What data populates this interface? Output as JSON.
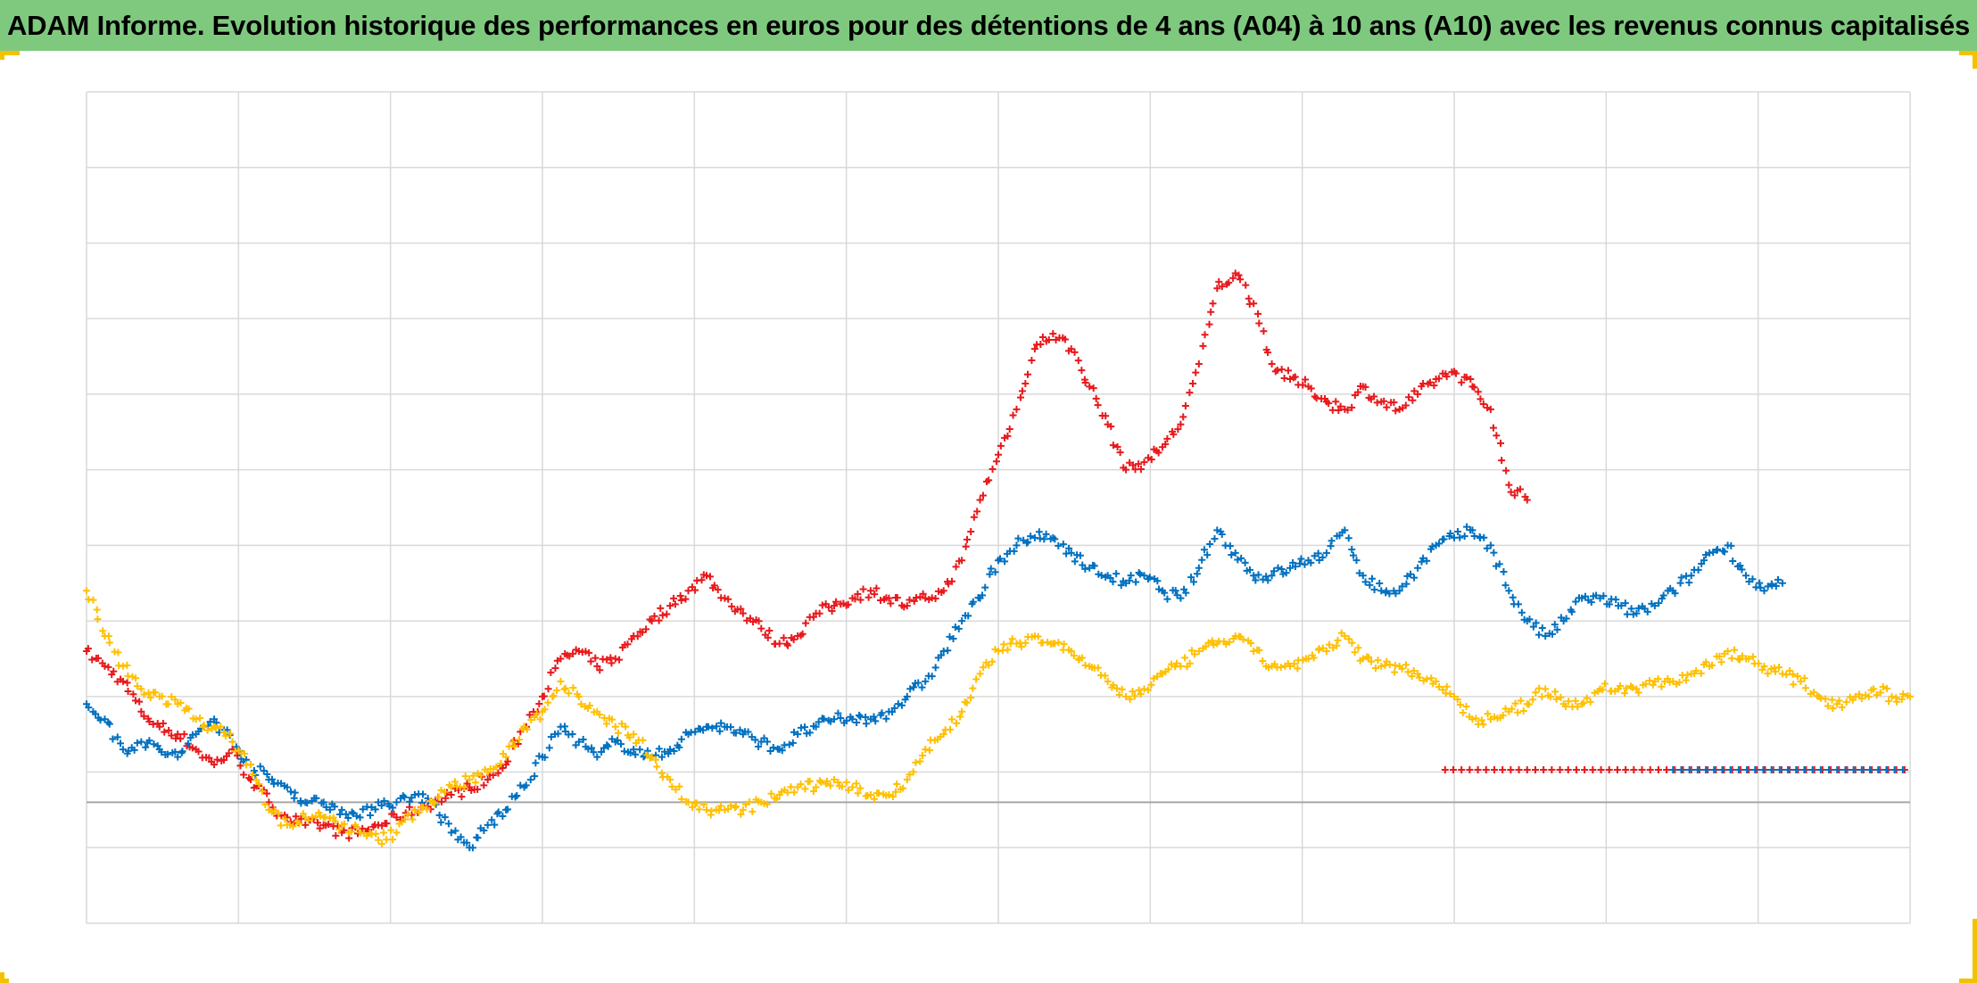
{
  "title": "ADAM Informe. Evolution historique des performances en euros pour des détentions de 4 ans (A04) à 10 ans (A10) avec les revenus connus capitalisés",
  "colors": {
    "title_bar": "#7fc97f",
    "frame_corners": "#f2c200",
    "grid": "#d9d9d9",
    "zero_line": "#a6a6a6"
  },
  "chart_data": {
    "type": "scatter",
    "marker": "plus",
    "grid": true,
    "legend": "none",
    "axis_labels_visible": false,
    "xlim": [
      0,
      100
    ],
    "ylim": [
      -16,
      94
    ],
    "y_major_step": 10,
    "y_zero_line": 0,
    "x_gridlines": 12,
    "series": [
      {
        "color": "#e8191c",
        "points": [
          [
            0,
            20
          ],
          [
            1,
            18
          ],
          [
            2,
            16
          ],
          [
            3,
            12
          ],
          [
            4,
            10
          ],
          [
            5,
            9
          ],
          [
            6,
            7
          ],
          [
            7,
            5
          ],
          [
            8,
            7
          ],
          [
            9,
            3
          ],
          [
            10,
            0
          ],
          [
            11,
            -2
          ],
          [
            12,
            -3
          ],
          [
            13,
            -3
          ],
          [
            14,
            -4
          ],
          [
            15,
            -4
          ],
          [
            16,
            -3
          ],
          [
            17,
            -2
          ],
          [
            18,
            -1
          ],
          [
            19,
            0
          ],
          [
            20,
            1
          ],
          [
            21,
            2
          ],
          [
            22,
            3
          ],
          [
            23,
            5
          ],
          [
            24,
            10
          ],
          [
            25,
            14
          ],
          [
            26,
            19
          ],
          [
            27,
            20
          ],
          [
            28,
            18
          ],
          [
            29,
            19
          ],
          [
            30,
            22
          ],
          [
            31,
            24
          ],
          [
            32,
            26
          ],
          [
            33,
            28
          ],
          [
            34,
            30
          ],
          [
            35,
            27
          ],
          [
            36,
            25
          ],
          [
            37,
            23
          ],
          [
            38,
            21
          ],
          [
            39,
            22
          ],
          [
            40,
            25
          ],
          [
            41,
            26
          ],
          [
            42,
            27
          ],
          [
            43,
            28
          ],
          [
            44,
            27
          ],
          [
            45,
            26
          ],
          [
            46,
            27
          ],
          [
            47,
            28
          ],
          [
            48,
            32
          ],
          [
            49,
            40
          ],
          [
            50,
            46
          ],
          [
            51,
            52
          ],
          [
            52,
            60
          ],
          [
            53,
            62
          ],
          [
            54,
            60
          ],
          [
            55,
            55
          ],
          [
            56,
            50
          ],
          [
            57,
            44
          ],
          [
            58,
            45
          ],
          [
            59,
            47
          ],
          [
            60,
            50
          ],
          [
            61,
            58
          ],
          [
            62,
            68
          ],
          [
            63,
            70
          ],
          [
            64,
            66
          ],
          [
            65,
            58
          ],
          [
            66,
            56
          ],
          [
            67,
            55
          ],
          [
            68,
            53
          ],
          [
            69,
            52
          ],
          [
            70,
            55
          ],
          [
            71,
            53
          ],
          [
            72,
            52
          ],
          [
            73,
            54
          ],
          [
            74,
            56
          ],
          [
            75,
            57
          ],
          [
            76,
            55
          ],
          [
            77,
            52
          ],
          [
            78,
            42
          ],
          [
            79,
            40
          ]
        ],
        "flat": {
          "from": 74.5,
          "to": 100,
          "value": 4.3
        }
      },
      {
        "color": "#0070c0",
        "points": [
          [
            0,
            13
          ],
          [
            1,
            11
          ],
          [
            2,
            7
          ],
          [
            3,
            8
          ],
          [
            4,
            7
          ],
          [
            5,
            6
          ],
          [
            6,
            9
          ],
          [
            7,
            11
          ],
          [
            8,
            8
          ],
          [
            9,
            5
          ],
          [
            10,
            3
          ],
          [
            11,
            2
          ],
          [
            12,
            0
          ],
          [
            13,
            0
          ],
          [
            14,
            -1
          ],
          [
            15,
            -2
          ],
          [
            16,
            0
          ],
          [
            17,
            0
          ],
          [
            18,
            1
          ],
          [
            19,
            0
          ],
          [
            20,
            -4
          ],
          [
            21,
            -6
          ],
          [
            22,
            -3
          ],
          [
            23,
            -1
          ],
          [
            24,
            2
          ],
          [
            25,
            6
          ],
          [
            26,
            10
          ],
          [
            27,
            8
          ],
          [
            28,
            6
          ],
          [
            29,
            8
          ],
          [
            30,
            7
          ],
          [
            31,
            6
          ],
          [
            32,
            7
          ],
          [
            33,
            9
          ],
          [
            34,
            10
          ],
          [
            35,
            10
          ],
          [
            36,
            9
          ],
          [
            37,
            8
          ],
          [
            38,
            7
          ],
          [
            39,
            9
          ],
          [
            40,
            10
          ],
          [
            41,
            11
          ],
          [
            42,
            11
          ],
          [
            43,
            11
          ],
          [
            44,
            12
          ],
          [
            45,
            14
          ],
          [
            46,
            16
          ],
          [
            47,
            20
          ],
          [
            48,
            24
          ],
          [
            49,
            27
          ],
          [
            50,
            32
          ],
          [
            51,
            34
          ],
          [
            52,
            35
          ],
          [
            53,
            35
          ],
          [
            54,
            33
          ],
          [
            55,
            31
          ],
          [
            56,
            30
          ],
          [
            57,
            29
          ],
          [
            58,
            30
          ],
          [
            59,
            28
          ],
          [
            60,
            27
          ],
          [
            61,
            31
          ],
          [
            62,
            36
          ],
          [
            63,
            33
          ],
          [
            64,
            30
          ],
          [
            65,
            30
          ],
          [
            66,
            31
          ],
          [
            67,
            32
          ],
          [
            68,
            33
          ],
          [
            69,
            36
          ],
          [
            70,
            30
          ],
          [
            71,
            28
          ],
          [
            72,
            28
          ],
          [
            73,
            31
          ],
          [
            74,
            34
          ],
          [
            75,
            35
          ],
          [
            76,
            36
          ],
          [
            77,
            34
          ],
          [
            78,
            28
          ],
          [
            79,
            24
          ],
          [
            80,
            22
          ],
          [
            81,
            24
          ],
          [
            82,
            27
          ],
          [
            83,
            27
          ],
          [
            84,
            26
          ],
          [
            85,
            25
          ],
          [
            86,
            26
          ],
          [
            87,
            28
          ],
          [
            88,
            30
          ],
          [
            89,
            33
          ],
          [
            90,
            34
          ],
          [
            91,
            30
          ],
          [
            92,
            28
          ],
          [
            93,
            29
          ]
        ],
        "flat": {
          "from": 87,
          "to": 100,
          "value": 4.3
        }
      },
      {
        "color": "#ffc000",
        "points": [
          [
            0,
            28
          ],
          [
            1,
            22
          ],
          [
            2,
            18
          ],
          [
            3,
            15
          ],
          [
            4,
            14
          ],
          [
            5,
            13
          ],
          [
            6,
            11
          ],
          [
            7,
            10
          ],
          [
            8,
            8
          ],
          [
            9,
            5
          ],
          [
            10,
            -1
          ],
          [
            11,
            -3
          ],
          [
            12,
            -2
          ],
          [
            13,
            -2
          ],
          [
            14,
            -3
          ],
          [
            15,
            -4
          ],
          [
            16,
            -5
          ],
          [
            17,
            -4
          ],
          [
            18,
            -1
          ],
          [
            19,
            0
          ],
          [
            20,
            2
          ],
          [
            21,
            3
          ],
          [
            22,
            4
          ],
          [
            23,
            6
          ],
          [
            24,
            10
          ],
          [
            25,
            12
          ],
          [
            26,
            16
          ],
          [
            27,
            14
          ],
          [
            28,
            12
          ],
          [
            29,
            10
          ],
          [
            30,
            9
          ],
          [
            31,
            6
          ],
          [
            32,
            3
          ],
          [
            33,
            0
          ],
          [
            34,
            -1
          ],
          [
            35,
            -1
          ],
          [
            36,
            -1
          ],
          [
            37,
            0
          ],
          [
            38,
            1
          ],
          [
            39,
            2
          ],
          [
            40,
            2
          ],
          [
            41,
            3
          ],
          [
            42,
            2
          ],
          [
            43,
            1
          ],
          [
            44,
            1
          ],
          [
            45,
            3
          ],
          [
            46,
            7
          ],
          [
            47,
            9
          ],
          [
            48,
            12
          ],
          [
            49,
            17
          ],
          [
            50,
            20
          ],
          [
            51,
            21
          ],
          [
            52,
            22
          ],
          [
            53,
            21
          ],
          [
            54,
            20
          ],
          [
            55,
            18
          ],
          [
            56,
            16
          ],
          [
            57,
            14
          ],
          [
            58,
            15
          ],
          [
            59,
            17
          ],
          [
            60,
            18
          ],
          [
            61,
            20
          ],
          [
            62,
            21
          ],
          [
            63,
            22
          ],
          [
            64,
            20
          ],
          [
            65,
            18
          ],
          [
            66,
            18
          ],
          [
            67,
            19
          ],
          [
            68,
            20
          ],
          [
            69,
            22
          ],
          [
            70,
            19
          ],
          [
            71,
            18
          ],
          [
            72,
            18
          ],
          [
            73,
            17
          ],
          [
            74,
            16
          ],
          [
            75,
            14
          ],
          [
            76,
            11
          ],
          [
            77,
            11
          ],
          [
            78,
            12
          ],
          [
            79,
            13
          ],
          [
            80,
            15
          ],
          [
            81,
            13
          ],
          [
            82,
            13
          ],
          [
            83,
            15
          ],
          [
            84,
            15
          ],
          [
            85,
            15
          ],
          [
            86,
            16
          ],
          [
            87,
            16
          ],
          [
            88,
            17
          ],
          [
            89,
            18
          ],
          [
            90,
            20
          ],
          [
            91,
            19
          ],
          [
            92,
            18
          ],
          [
            93,
            17
          ],
          [
            94,
            16
          ],
          [
            95,
            14
          ],
          [
            96,
            13
          ],
          [
            97,
            14
          ],
          [
            98,
            15
          ],
          [
            99,
            14
          ],
          [
            100,
            14
          ]
        ]
      }
    ]
  }
}
